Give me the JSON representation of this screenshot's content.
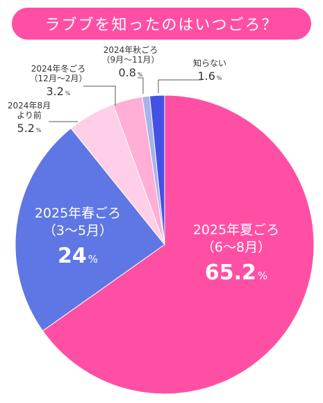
{
  "colors": {
    "title_bg": "#ff4fa5",
    "slices": [
      "#ff4fa5",
      "#5f77e4",
      "#ffcfe8",
      "#ffaed6",
      "#a7b4e8",
      "#4451e6"
    ],
    "inner_label": "#ffffff",
    "outer_label": "#333333",
    "leader": "#555555"
  },
  "chart_data": {
    "type": "pie",
    "title": "ラブブを知ったのはいつごろ？",
    "unit": "%",
    "slices": [
      {
        "label_lines": [
          "2025年夏ごろ",
          "（6～8月）"
        ],
        "value": 65.2,
        "value_text": "65.2"
      },
      {
        "label_lines": [
          "2025年春ごろ",
          "（3～5月）"
        ],
        "value": 24,
        "value_text": "24"
      },
      {
        "label_lines": [
          "2024年8月",
          "より前"
        ],
        "value": 5.2,
        "value_text": "5.2"
      },
      {
        "label_lines": [
          "2024年冬ごろ",
          "（12月～2月）"
        ],
        "value": 3.2,
        "value_text": "3.2"
      },
      {
        "label_lines": [
          "2024年秋ごろ",
          "（9月～11月）"
        ],
        "value": 0.8,
        "value_text": "0.8"
      },
      {
        "label_lines": [
          "知らない"
        ],
        "value": 1.6,
        "value_text": "1.6"
      }
    ],
    "order": "clockwise from 12 o'clock, starting with 2025年夏ごろ"
  }
}
